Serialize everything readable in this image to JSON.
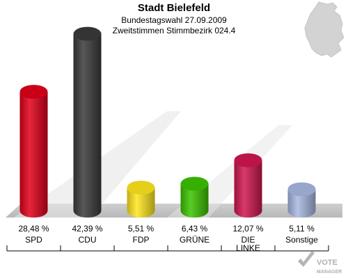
{
  "header": {
    "title": "Stadt Bielefeld",
    "subtitle1": "Bundestagswahl 27.09.2009",
    "subtitle2": "Zweitstimmen Stimmbezirk 024.4"
  },
  "logo": {
    "text_top": "VOTE",
    "text_bottom": "MANAGER"
  },
  "chart_data": {
    "type": "bar",
    "categories": [
      "SPD",
      "CDU",
      "FDP",
      "GRÜNE",
      "DIE LINKE",
      "Sonstige"
    ],
    "category_lines": [
      [
        "SPD"
      ],
      [
        "CDU"
      ],
      [
        "FDP"
      ],
      [
        "GRÜNE"
      ],
      [
        "DIE",
        "LINKE"
      ],
      [
        "Sonstige"
      ]
    ],
    "values": [
      28.48,
      42.39,
      5.51,
      6.43,
      12.07,
      5.11
    ],
    "value_labels": [
      "28,48 %",
      "42,39 %",
      "5,51 %",
      "6,43 %",
      "12,07 %",
      "5,11 %"
    ],
    "colors": [
      "#e2001a",
      "#3a3a3a",
      "#ffe61e",
      "#3cc400",
      "#d01750",
      "#a8b8e0"
    ],
    "title": "Stadt Bielefeld",
    "xlabel": "",
    "ylabel": "",
    "ylim": [
      0,
      45
    ],
    "grid": false,
    "legend": "none"
  }
}
